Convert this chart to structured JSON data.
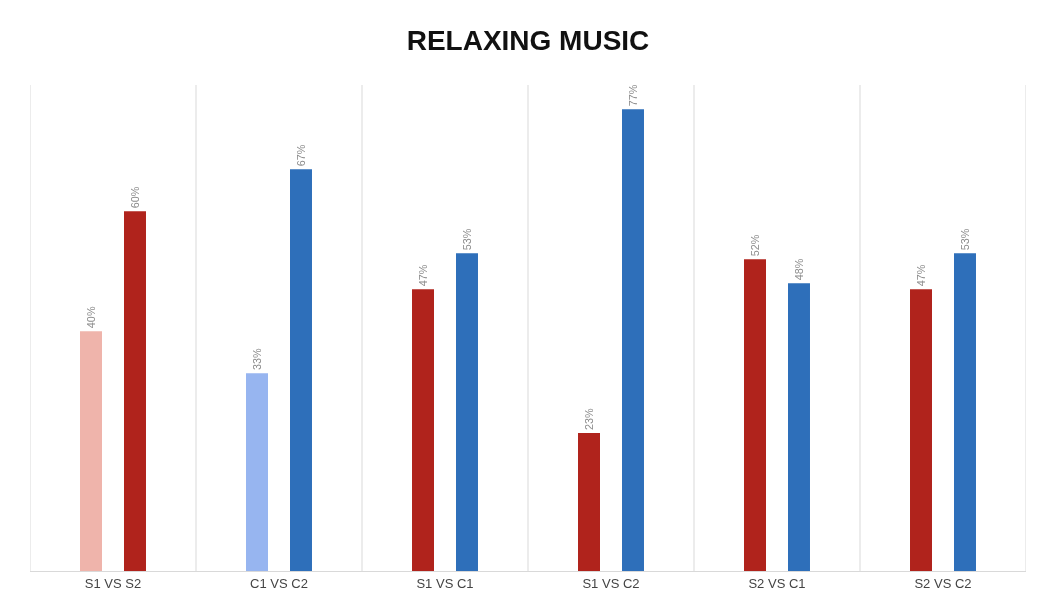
{
  "chart_data": {
    "type": "bar",
    "title": "RELAXING MUSIC",
    "categories": [
      "S1 VS S2",
      "C1 VS C2",
      "S1 VS C1",
      "S1 VS C2",
      "S2 VS C1",
      "S2 VS C2"
    ],
    "series": [
      {
        "colors": [
          "#efb4ab",
          "#97b5f0",
          "#b0231c",
          "#b0231c",
          "#b0231c",
          "#b0231c"
        ],
        "values": [
          40,
          33,
          47,
          23,
          52,
          47
        ],
        "value_labels": [
          "40%",
          "33%",
          "47%",
          "23%",
          "52%",
          "47%"
        ]
      },
      {
        "colors": [
          "#b0231c",
          "#2e6fba",
          "#2e6fba",
          "#2e6fba",
          "#2e6fba",
          "#2e6fba"
        ],
        "values": [
          60,
          67,
          53,
          77,
          48,
          53
        ],
        "value_labels": [
          "60%",
          "67%",
          "53%",
          "77%",
          "48%",
          "53%"
        ]
      }
    ],
    "grid": "x"
  }
}
